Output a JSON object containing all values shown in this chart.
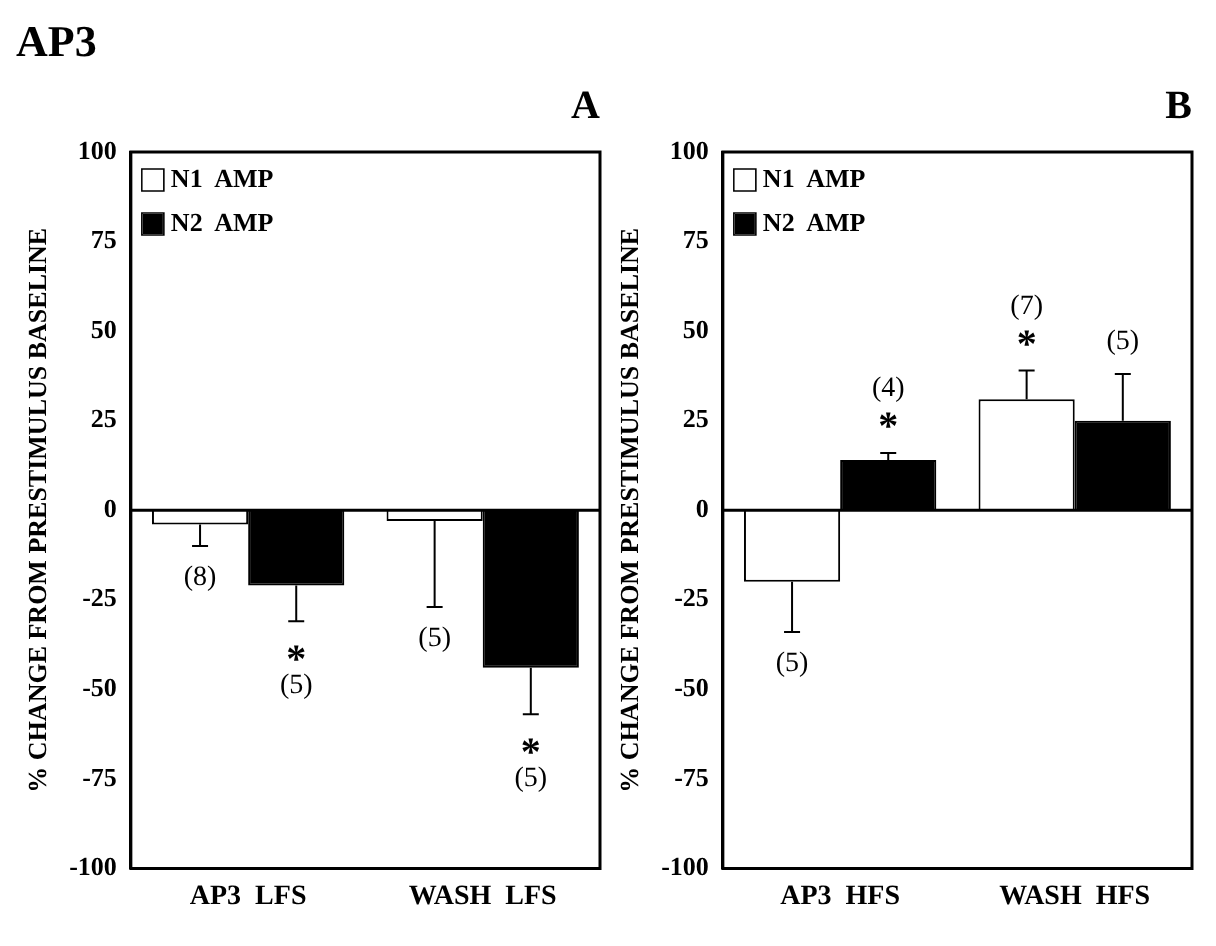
{
  "chart_data": [
    {
      "type": "bar",
      "title": "A",
      "ylabel": "% CHANGE FROM PRESTIMULUS BASELINE",
      "categories": [
        "AP3  LFS",
        "WASH  LFS"
      ],
      "series": [
        {
          "name": "N1  AMP",
          "color": "#ffffff",
          "values": [
            -4,
            -3
          ],
          "errors": [
            [
              -10,
              -4
            ],
            [
              -27,
              -3
            ]
          ]
        },
        {
          "name": "N2  AMP",
          "color": "#000000",
          "values": [
            -21,
            -44
          ],
          "errors": [
            [
              -31,
              -21
            ],
            [
              -57,
              -44
            ]
          ]
        }
      ],
      "annotations": [
        "AP3",
        {
          "text": "(8)",
          "x": "AP3  LFS",
          "y": -4
        },
        {
          "text": "*\n(5)",
          "x": "AP3  LFS",
          "y": -21
        },
        {
          "text": "(5)",
          "x": "WASH  LFS",
          "y": -27
        },
        {
          "text": "*\n(5)",
          "x": "WASH  LFS",
          "y": -44
        }
      ],
      "ref_lines": [
        {
          "axis": "y",
          "value": 0
        }
      ],
      "ylim": [
        -100,
        100
      ],
      "yticks": [
        -100,
        -75,
        -50,
        -25,
        0,
        25,
        50,
        75,
        100
      ],
      "legend": "top left",
      "grid": false
    },
    {
      "type": "bar",
      "title": "B",
      "ylabel": "% CHANGE FROM PRESTIMULUS BASELINE",
      "categories": [
        "AP3  HFS",
        "WASH  HFS"
      ],
      "series": [
        {
          "name": "N1  AMP",
          "color": "#ffffff",
          "values": [
            -20,
            31
          ],
          "errors": [
            [
              -34,
              -20
            ],
            [
              31,
              39
            ]
          ]
        },
        {
          "name": "N2  AMP",
          "color": "#000000",
          "values": [
            14,
            25
          ],
          "errors": [
            [
              14,
              16
            ],
            [
              25,
              38
            ]
          ]
        }
      ],
      "annotations": [
        {
          "text": "(5)",
          "x": "AP3  HFS",
          "y": -20
        },
        {
          "text": "(4)\n*",
          "x": "AP3  HFS",
          "y": 14
        },
        {
          "text": "(7)\n*",
          "x": "WASH  HFS",
          "y": 31
        },
        {
          "text": "(5)",
          "x": "WASH  HFS",
          "y": 25
        }
      ],
      "ref_lines": [
        {
          "axis": "y",
          "value": 0
        }
      ],
      "ylim": [
        -100,
        100
      ],
      "yticks": [
        -100,
        -75,
        -50,
        -25,
        0,
        25,
        50,
        75,
        100
      ],
      "legend": "top left",
      "grid": false
    }
  ]
}
